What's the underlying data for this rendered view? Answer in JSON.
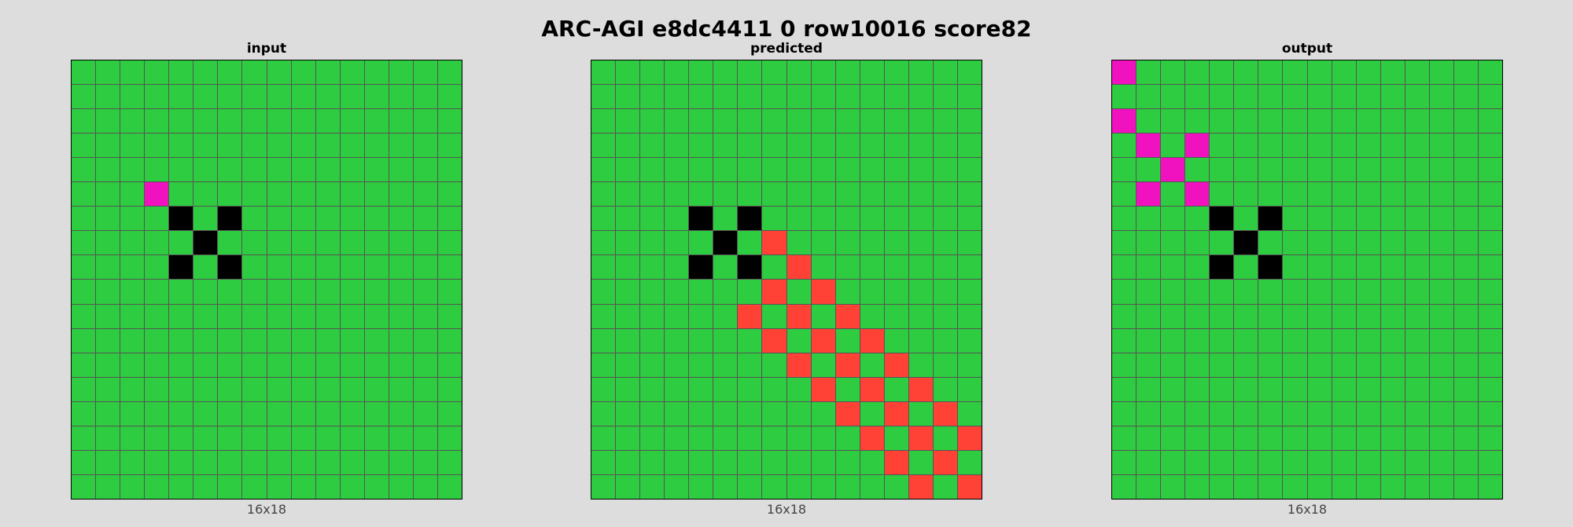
{
  "title": "ARC-AGI e8dc4411 0 row10016 score82",
  "palette": {
    "0": "#000000",
    "3": "#2ecc40",
    "2": "#ff4136",
    "6": "#f012be"
  },
  "panels": [
    {
      "label": "input",
      "dims": "16x18",
      "grid": [
        "3333333333333333",
        "3333333333333333",
        "3333333333333333",
        "3333333333333333",
        "3333333333333333",
        "3336333333333333",
        "3333030333333333",
        "3333303333333333",
        "3333030333333333",
        "3333333333333333",
        "3333333333333333",
        "3333333333333333",
        "3333333333333333",
        "3333333333333333",
        "3333333333333333",
        "3333333333333333",
        "3333333333333333",
        "3333333333333333"
      ]
    },
    {
      "label": "predicted",
      "dims": "16x18",
      "grid": [
        "3333333333333333",
        "3333333333333333",
        "3333333333333333",
        "3333333333333333",
        "3333333333333333",
        "3333333333333333",
        "3333030333333333",
        "3333303233333333",
        "3333030323333333",
        "3333333232333333",
        "3333332323233333",
        "3333333232323333",
        "3333333323232333",
        "3333333332323233",
        "3333333333232323",
        "3333333333323232",
        "3333333333332323",
        "3333333333333232"
      ]
    },
    {
      "label": "output",
      "dims": "16x18",
      "grid": [
        "6333333333333333",
        "3333333333333333",
        "6333333333333333",
        "3636333333333333",
        "3363333333333333",
        "3636333333333333",
        "3333030333333333",
        "3333303333333333",
        "3333030333333333",
        "3333333333333333",
        "3333333333333333",
        "3333333333333333",
        "3333333333333333",
        "3333333333333333",
        "3333333333333333",
        "3333333333333333",
        "3333333333333333",
        "3333333333333333"
      ]
    }
  ]
}
